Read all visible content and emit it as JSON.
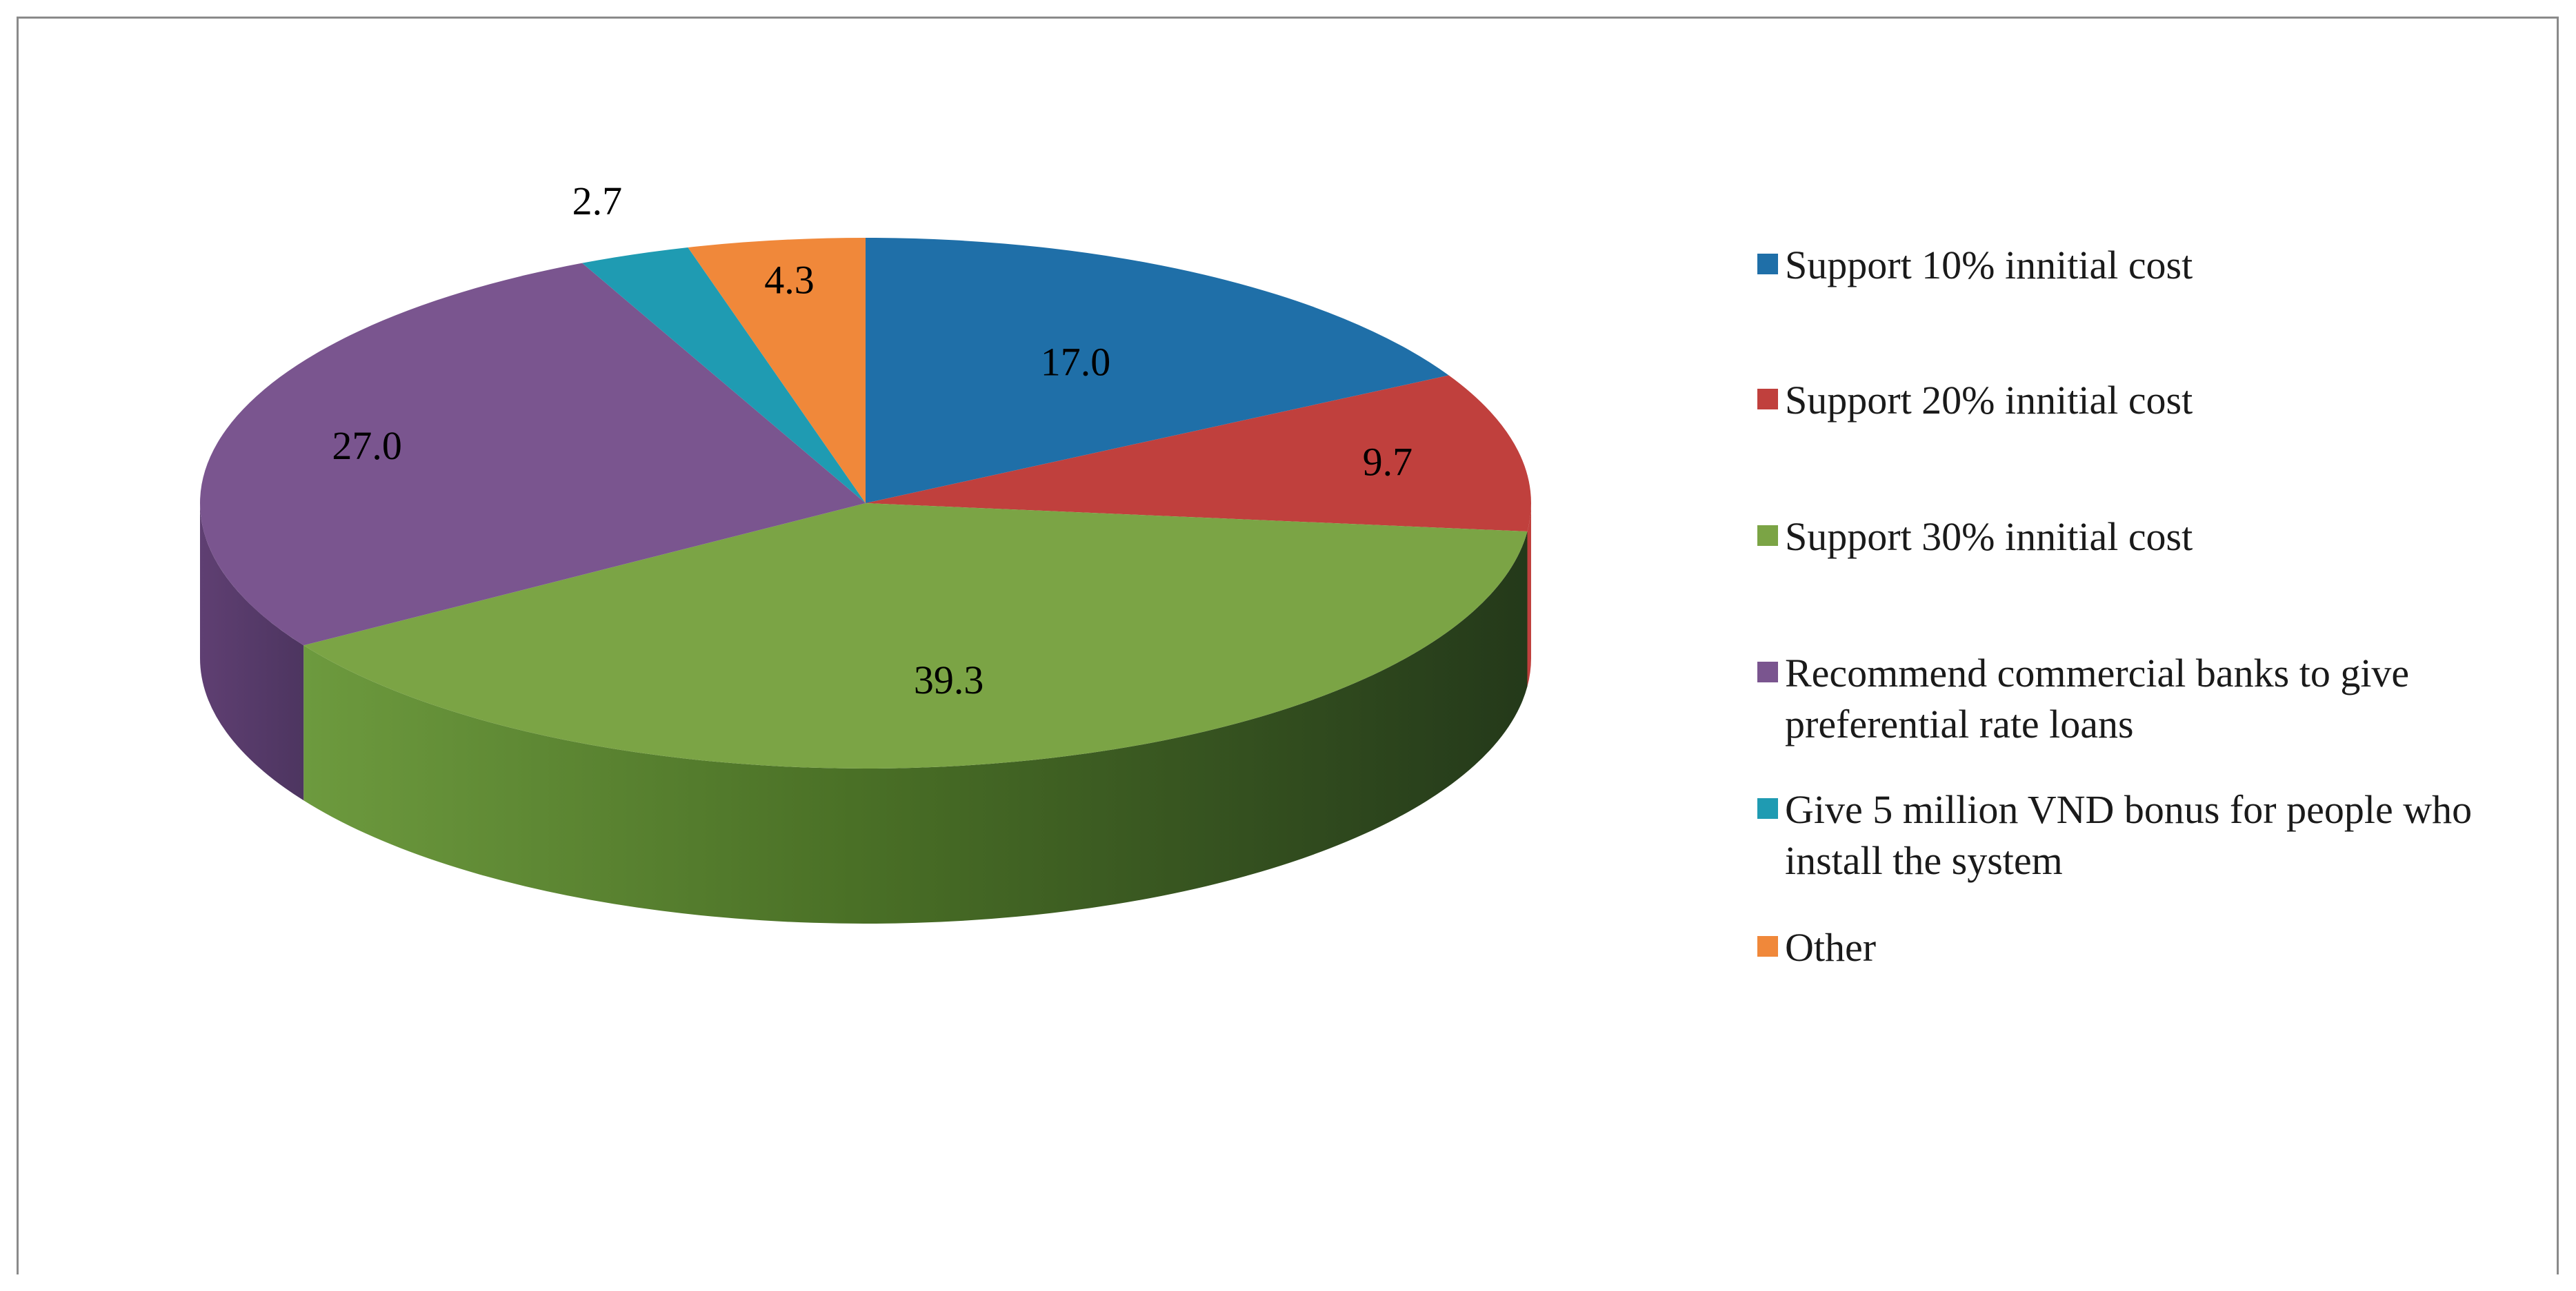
{
  "chart_data": {
    "type": "pie",
    "three_d": true,
    "legend_position": "right",
    "title": "",
    "slices": [
      {
        "label": "Support 10% innitial cost",
        "value": 17.0,
        "value_label": "17.0",
        "color": "#1f6fa8"
      },
      {
        "label": "Support 20% innitial cost",
        "value": 9.7,
        "value_label": "9.7",
        "color": "#c0403d"
      },
      {
        "label": "Support 30% innitial cost",
        "value": 39.3,
        "value_label": "39.3",
        "color": "#7ba445"
      },
      {
        "label": "Recommend commercial banks to give preferential rate loans",
        "value": 27.0,
        "value_label": "27.0",
        "color": "#7a558f"
      },
      {
        "label": "Give 5 million VND bonus for people who install the system",
        "value": 2.7,
        "value_label": "2.7",
        "color": "#1f9bb2"
      },
      {
        "label": "Other",
        "value": 4.3,
        "value_label": "4.3",
        "color": "#f0883a"
      }
    ]
  }
}
